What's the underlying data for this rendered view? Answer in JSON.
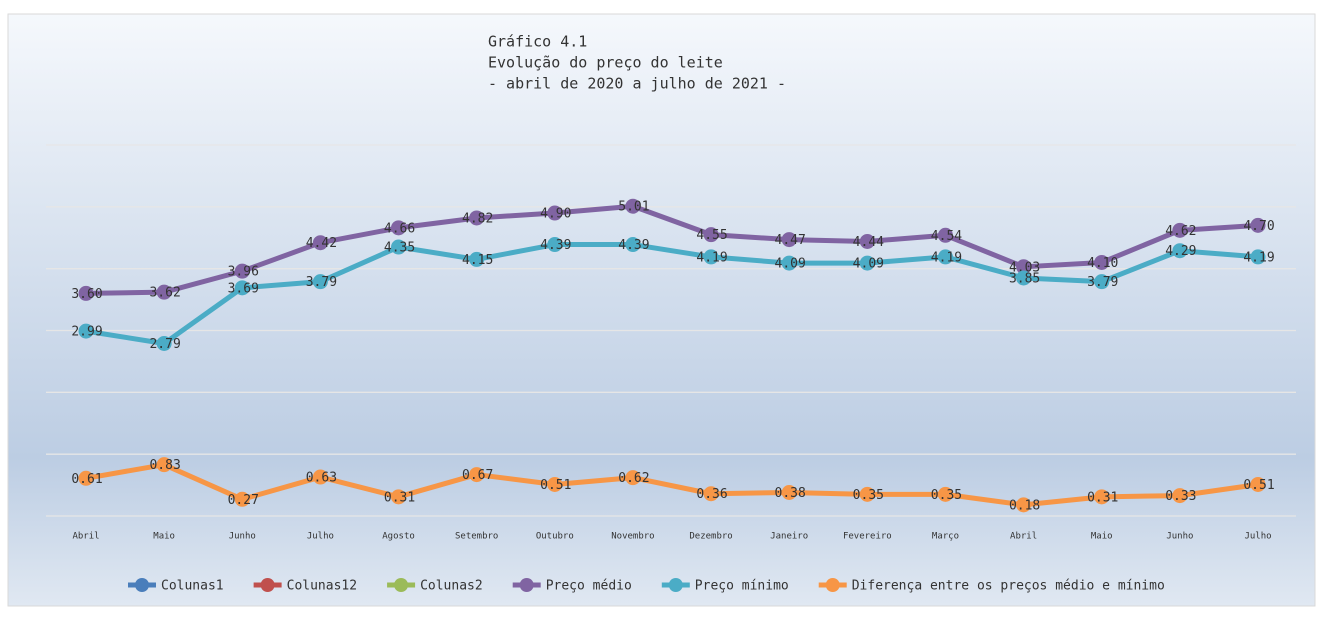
{
  "chart_data": {
    "type": "line",
    "title": [
      "Gráfico 4.1",
      "Evolução do preço do leite",
      "- abril de 2020 a julho de 2021 -"
    ],
    "categories": [
      "Abril",
      "Maio",
      "Junho",
      "Julho",
      "Agosto",
      "Setembro",
      "Outubro",
      "Novembro",
      "Dezembro",
      "Janeiro",
      "Fevereiro",
      "Março",
      "Abril",
      "Maio",
      "Junho",
      "Julho"
    ],
    "ylim": [
      0,
      6
    ],
    "yticks": [
      0,
      1,
      2,
      3,
      4,
      5,
      6
    ],
    "grid": true,
    "legend": "bottom",
    "series": [
      {
        "name": "Colunas1",
        "color": "#4a7ebb",
        "values": [
          null,
          null,
          null,
          null,
          null,
          null,
          null,
          null,
          null,
          null,
          null,
          null,
          null,
          null,
          null,
          null
        ]
      },
      {
        "name": "Colunas12",
        "color": "#c0504d",
        "values": [
          null,
          null,
          null,
          null,
          null,
          null,
          null,
          null,
          null,
          null,
          null,
          null,
          null,
          null,
          null,
          null
        ]
      },
      {
        "name": "Colunas2",
        "color": "#9bbb59",
        "values": [
          null,
          null,
          null,
          null,
          null,
          null,
          null,
          null,
          null,
          null,
          null,
          null,
          null,
          null,
          null,
          null
        ]
      },
      {
        "name": "Preço médio",
        "color": "#8064a2",
        "values": [
          3.6,
          3.62,
          3.96,
          4.42,
          4.66,
          4.82,
          4.9,
          5.01,
          4.55,
          4.47,
          4.44,
          4.54,
          4.03,
          4.1,
          4.62,
          4.7
        ],
        "value_labels": [
          "3.60",
          "3.62",
          "3.96",
          "4.42",
          "4.66",
          "4.82",
          "4.90",
          "5.01",
          "4.55",
          "4.47",
          "4.44",
          "4.54",
          "4.03",
          "4.10",
          "4.62",
          "4.70"
        ]
      },
      {
        "name": "Preço mínimo",
        "color": "#4bacc6",
        "values": [
          2.99,
          2.79,
          3.69,
          3.79,
          4.35,
          4.15,
          4.39,
          4.39,
          4.19,
          4.09,
          4.09,
          4.19,
          3.85,
          3.79,
          4.29,
          4.19
        ],
        "value_labels": [
          "2.99",
          "2.79",
          "3.69",
          "3.79",
          "4.35",
          "4.15",
          "4.39",
          "4.39",
          "4.19",
          "4.09",
          "4.09",
          "4.19",
          "3.85",
          "3.79",
          "4.29",
          "4.19"
        ]
      },
      {
        "name": "Diferença entre os preços médio e mínimo",
        "color": "#f79646",
        "values": [
          0.61,
          0.83,
          0.27,
          0.63,
          0.31,
          0.67,
          0.51,
          0.62,
          0.36,
          0.38,
          0.35,
          0.35,
          0.18,
          0.31,
          0.33,
          0.51
        ],
        "value_labels": [
          "0.61",
          "0.83",
          "0.27",
          "0.63",
          "0.31",
          "0.67",
          "0.51",
          "0.62",
          "0.36",
          "0.38",
          "0.35",
          "0.35",
          "0.18",
          "0.31",
          "0.33",
          "0.51"
        ]
      }
    ]
  }
}
